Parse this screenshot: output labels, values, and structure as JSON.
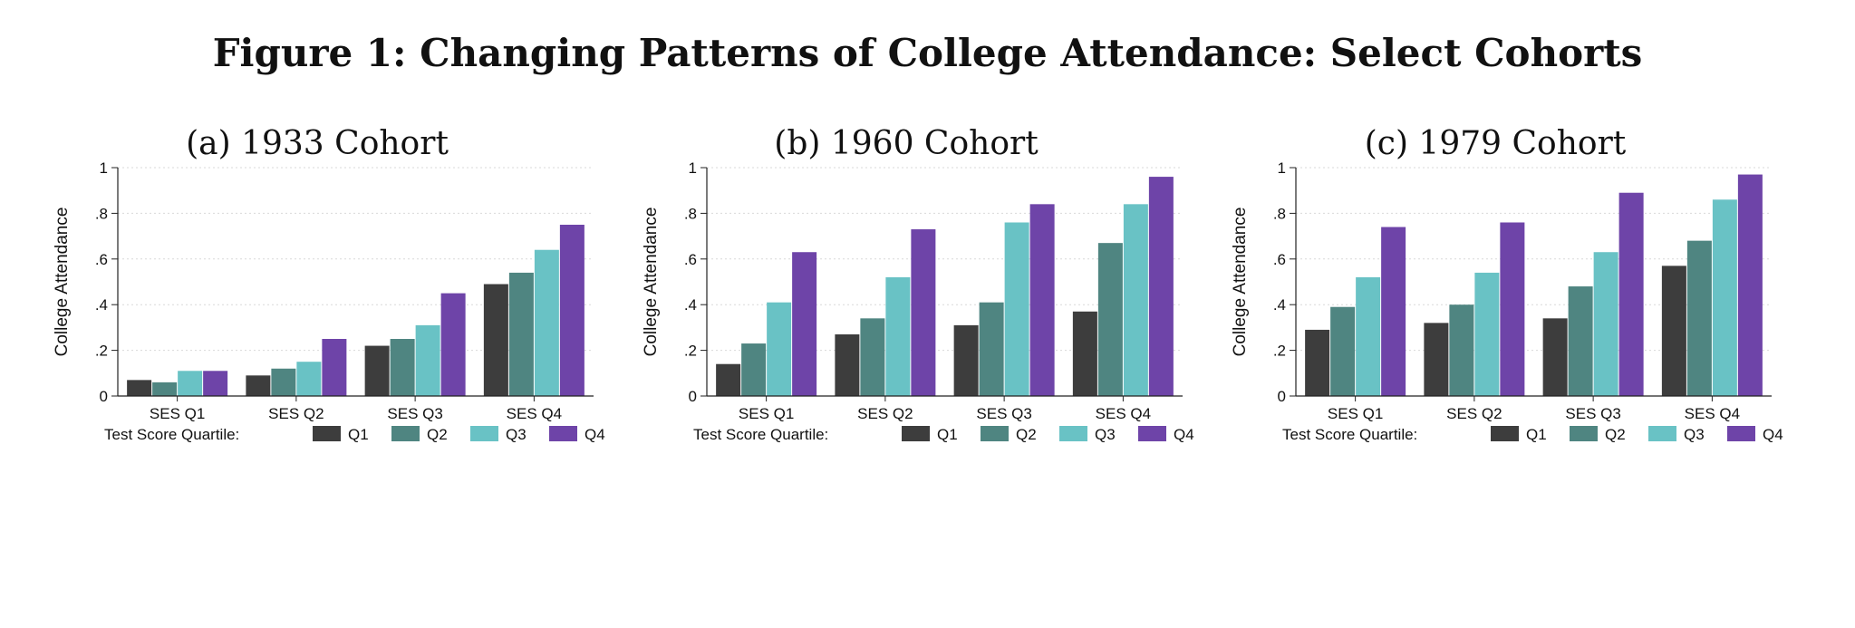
{
  "title": "Figure 1: Changing Patterns of College Attendance: Select Cohorts",
  "colors": {
    "Q1": "#3d3d3d",
    "Q2": "#4f8581",
    "Q3": "#69c2c5",
    "Q4": "#6e44a8"
  },
  "chart_data": [
    {
      "type": "bar",
      "title": "(a) 1933 Cohort",
      "ylabel": "College Attendance",
      "ylim": [
        0,
        1
      ],
      "yticks": [
        "0",
        ".2",
        ".4",
        ".6",
        ".8",
        "1"
      ],
      "grid": true,
      "legend_title": "Test Score Quartile:",
      "legend_position": "bottom",
      "categories": [
        "SES Q1",
        "SES Q2",
        "SES Q3",
        "SES Q4"
      ],
      "series": [
        {
          "name": "Q1",
          "values": [
            0.07,
            0.09,
            0.22,
            0.49
          ]
        },
        {
          "name": "Q2",
          "values": [
            0.06,
            0.12,
            0.25,
            0.54
          ]
        },
        {
          "name": "Q3",
          "values": [
            0.11,
            0.15,
            0.31,
            0.64
          ]
        },
        {
          "name": "Q4",
          "values": [
            0.11,
            0.25,
            0.45,
            0.75
          ]
        }
      ]
    },
    {
      "type": "bar",
      "title": "(b) 1960 Cohort",
      "ylabel": "College Attendance",
      "ylim": [
        0,
        1
      ],
      "yticks": [
        "0",
        ".2",
        ".4",
        ".6",
        ".8",
        "1"
      ],
      "grid": true,
      "legend_title": "Test Score Quartile:",
      "legend_position": "bottom",
      "categories": [
        "SES Q1",
        "SES Q2",
        "SES Q3",
        "SES Q4"
      ],
      "series": [
        {
          "name": "Q1",
          "values": [
            0.14,
            0.27,
            0.31,
            0.37
          ]
        },
        {
          "name": "Q2",
          "values": [
            0.23,
            0.34,
            0.41,
            0.67
          ]
        },
        {
          "name": "Q3",
          "values": [
            0.41,
            0.52,
            0.76,
            0.84
          ]
        },
        {
          "name": "Q4",
          "values": [
            0.63,
            0.73,
            0.84,
            0.96
          ]
        }
      ]
    },
    {
      "type": "bar",
      "title": "(c) 1979 Cohort",
      "ylabel": "College Attendance",
      "ylim": [
        0,
        1
      ],
      "yticks": [
        "0",
        ".2",
        ".4",
        ".6",
        ".8",
        "1"
      ],
      "grid": true,
      "legend_title": "Test Score Quartile:",
      "legend_position": "bottom",
      "categories": [
        "SES Q1",
        "SES Q2",
        "SES Q3",
        "SES Q4"
      ],
      "series": [
        {
          "name": "Q1",
          "values": [
            0.29,
            0.32,
            0.34,
            0.57
          ]
        },
        {
          "name": "Q2",
          "values": [
            0.39,
            0.4,
            0.48,
            0.68
          ]
        },
        {
          "name": "Q3",
          "values": [
            0.52,
            0.54,
            0.63,
            0.86
          ]
        },
        {
          "name": "Q4",
          "values": [
            0.74,
            0.76,
            0.89,
            0.97
          ]
        }
      ]
    }
  ]
}
